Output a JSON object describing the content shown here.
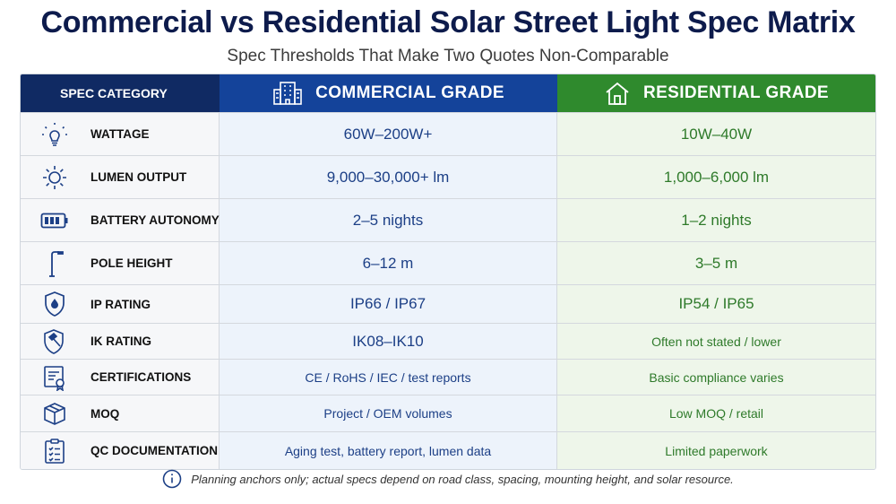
{
  "header": {
    "title": "Commercial vs Residential Solar Street Light Spec Matrix",
    "subtitle": "Spec Thresholds That Make Two Quotes Non-Comparable"
  },
  "columns": {
    "spec": "SPEC CATEGORY",
    "commercial": "COMMERCIAL GRADE",
    "residential": "RESIDENTIAL GRADE",
    "commercial_icon": "office-building-icon",
    "residential_icon": "house-icon"
  },
  "rows": [
    {
      "label": "WATTAGE",
      "icon": "lightbulb-icon",
      "commercial": "60W–200W+",
      "residential": "10W–40W"
    },
    {
      "label": "LUMEN OUTPUT",
      "icon": "sun-icon",
      "commercial": "9,000–30,000+ lm",
      "residential": "1,000–6,000 lm"
    },
    {
      "label": "BATTERY AUTONOMY",
      "icon": "battery-icon",
      "commercial": "2–5 nights",
      "residential": "1–2 nights"
    },
    {
      "label": "POLE HEIGHT",
      "icon": "street-pole-icon",
      "commercial": "6–12 m",
      "residential": "3–5 m"
    },
    {
      "label": "IP RATING",
      "icon": "water-shield-icon",
      "commercial": "IP66 / IP67",
      "residential": "IP54 / IP65"
    },
    {
      "label": "IK RATING",
      "icon": "hammer-shield-icon",
      "commercial": "IK08–IK10",
      "residential": "Often not stated / lower"
    },
    {
      "label": "CERTIFICATIONS",
      "icon": "certificate-icon",
      "commercial": "CE / RoHS / IEC / test reports",
      "residential": "Basic compliance varies"
    },
    {
      "label": "MOQ",
      "icon": "box-icon",
      "commercial": "Project / OEM volumes",
      "residential": "Low MOQ / retail"
    },
    {
      "label": "QC DOCUMENTATION",
      "icon": "checklist-icon",
      "commercial": "Aging test, battery report, lumen data",
      "residential": "Limited paperwork"
    }
  ],
  "footer": {
    "note": "Planning anchors only; actual specs depend on road class, spacing, mounting height, and solar resource.",
    "icon": "info-icon"
  },
  "colors": {
    "commercial_header": "#14439a",
    "residential_header": "#2f8a2d",
    "spec_header": "#102a63",
    "commercial_text": "#1c3f86",
    "residential_text": "#2e7a2a"
  }
}
